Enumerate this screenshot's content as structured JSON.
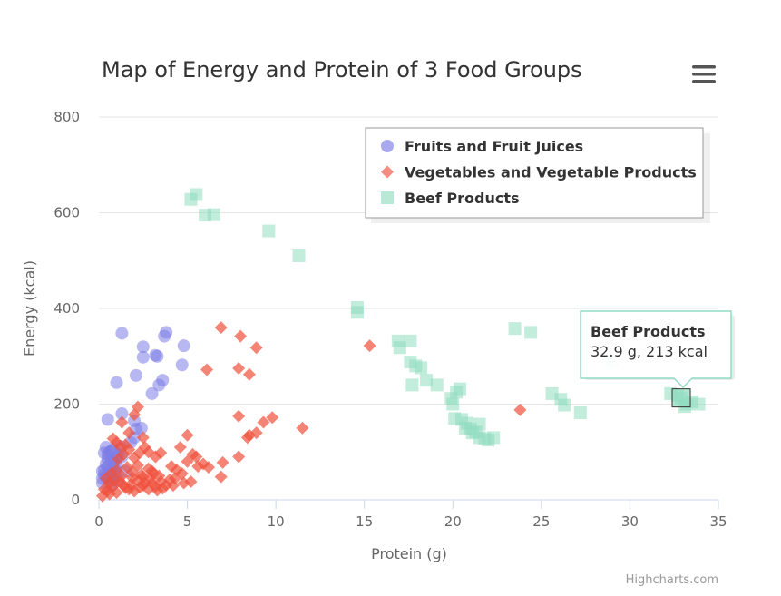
{
  "chart_data": {
    "type": "scatter",
    "title": "Map of Energy and Protein of 3 Food Groups",
    "xlabel": "Protein (g)",
    "ylabel": "Energy (kcal)",
    "xlim": [
      0,
      35
    ],
    "ylim": [
      0,
      800
    ],
    "x_ticks": [
      "0",
      "5",
      "10",
      "15",
      "20",
      "25",
      "30",
      "35"
    ],
    "y_ticks": [
      "0",
      "200",
      "400",
      "600",
      "800"
    ],
    "grid": "horizontal",
    "legend_position": "top-right",
    "series": [
      {
        "name": "Fruits and Fruit Juices",
        "color": "#7b7be6",
        "marker": "circle",
        "points": [
          [
            0.2,
            60
          ],
          [
            0.3,
            52
          ],
          [
            0.4,
            75
          ],
          [
            0.5,
            95
          ],
          [
            0.6,
            45
          ],
          [
            0.7,
            80
          ],
          [
            0.8,
            105
          ],
          [
            0.9,
            65
          ],
          [
            1.0,
            88
          ],
          [
            1.1,
            40
          ],
          [
            0.5,
            70
          ],
          [
            0.3,
            98
          ],
          [
            0.6,
            58
          ],
          [
            0.8,
            42
          ],
          [
            0.4,
            110
          ],
          [
            1.2,
            112
          ],
          [
            0.7,
            30
          ],
          [
            0.2,
            35
          ],
          [
            0.9,
            55
          ],
          [
            1.0,
            72
          ],
          [
            0.5,
            85
          ],
          [
            0.6,
            100
          ],
          [
            0.4,
            48
          ],
          [
            1.1,
            95
          ],
          [
            0.3,
            62
          ],
          [
            0.8,
            78
          ],
          [
            1.3,
            90
          ],
          [
            0.2,
            45
          ],
          [
            0.7,
            102
          ],
          [
            1.5,
            60
          ],
          [
            1.3,
            348
          ],
          [
            0.5,
            168
          ],
          [
            1.0,
            245
          ],
          [
            1.3,
            180
          ],
          [
            2.0,
            165
          ],
          [
            2.1,
            260
          ],
          [
            2.1,
            148
          ],
          [
            2.4,
            150
          ],
          [
            2.5,
            320
          ],
          [
            2.5,
            298
          ],
          [
            3.2,
            302
          ],
          [
            3.3,
            300
          ],
          [
            3.0,
            222
          ],
          [
            3.4,
            240
          ],
          [
            3.6,
            250
          ],
          [
            3.7,
            342
          ],
          [
            3.8,
            350
          ],
          [
            4.7,
            282
          ],
          [
            4.8,
            322
          ],
          [
            2.0,
            130
          ],
          [
            1.8,
            120
          ]
        ]
      },
      {
        "name": "Vegetables and Vegetable Products",
        "color": "#f0503c",
        "marker": "diamond",
        "points": [
          [
            0.2,
            8
          ],
          [
            0.5,
            20
          ],
          [
            0.8,
            28
          ],
          [
            1.0,
            15
          ],
          [
            1.2,
            38
          ],
          [
            1.5,
            25
          ],
          [
            1.8,
            32
          ],
          [
            2.0,
            18
          ],
          [
            2.2,
            40
          ],
          [
            2.5,
            30
          ],
          [
            2.8,
            22
          ],
          [
            3.0,
            35
          ],
          [
            3.2,
            28
          ],
          [
            3.5,
            38
          ],
          [
            3.8,
            30
          ],
          [
            4.0,
            42
          ],
          [
            0.4,
            45
          ],
          [
            0.7,
            55
          ],
          [
            1.0,
            62
          ],
          [
            1.3,
            50
          ],
          [
            1.6,
            68
          ],
          [
            1.9,
            58
          ],
          [
            2.2,
            72
          ],
          [
            2.5,
            48
          ],
          [
            2.8,
            65
          ],
          [
            3.1,
            55
          ],
          [
            0.6,
            35
          ],
          [
            0.9,
            40
          ],
          [
            1.4,
            30
          ],
          [
            1.7,
            22
          ],
          [
            2.3,
            26
          ],
          [
            2.6,
            36
          ],
          [
            2.9,
            44
          ],
          [
            3.3,
            20
          ],
          [
            3.6,
            24
          ],
          [
            4.2,
            30
          ],
          [
            1.1,
            85
          ],
          [
            1.4,
            95
          ],
          [
            1.7,
            105
          ],
          [
            2.0,
            88
          ],
          [
            2.3,
            98
          ],
          [
            2.6,
            110
          ],
          [
            1.0,
            120
          ],
          [
            1.5,
            115
          ],
          [
            2.8,
            100
          ],
          [
            3.2,
            90
          ],
          [
            3.5,
            98
          ],
          [
            4.1,
            70
          ],
          [
            4.4,
            62
          ],
          [
            4.7,
            55
          ],
          [
            5.0,
            80
          ],
          [
            5.3,
            95
          ],
          [
            5.6,
            70
          ],
          [
            5.9,
            75
          ],
          [
            6.2,
            68
          ],
          [
            4.6,
            110
          ],
          [
            5.0,
            135
          ],
          [
            5.5,
            90
          ],
          [
            4.8,
            35
          ],
          [
            5.2,
            38
          ],
          [
            4.3,
            45
          ],
          [
            6.9,
            48
          ],
          [
            7.0,
            78
          ],
          [
            7.9,
            90
          ],
          [
            8.4,
            130
          ],
          [
            8.5,
            135
          ],
          [
            8.9,
            140
          ],
          [
            9.3,
            162
          ],
          [
            9.8,
            172
          ],
          [
            7.9,
            175
          ],
          [
            11.5,
            150
          ],
          [
            6.9,
            360
          ],
          [
            8.0,
            342
          ],
          [
            8.9,
            318
          ],
          [
            7.9,
            275
          ],
          [
            8.5,
            262
          ],
          [
            6.1,
            272
          ],
          [
            15.3,
            322
          ],
          [
            23.8,
            188
          ],
          [
            1.3,
            162
          ],
          [
            2.0,
            178
          ],
          [
            2.2,
            194
          ],
          [
            1.7,
            140
          ],
          [
            2.5,
            130
          ],
          [
            0.8,
            128
          ],
          [
            1.2,
            112
          ],
          [
            0.3,
            22
          ],
          [
            0.6,
            12
          ],
          [
            1.9,
            46
          ],
          [
            2.4,
            52
          ],
          [
            3.0,
            60
          ],
          [
            3.4,
            50
          ]
        ]
      },
      {
        "name": "Beef Products",
        "color": "#90ddc0",
        "marker": "square",
        "points": [
          [
            5.2,
            628
          ],
          [
            5.5,
            638
          ],
          [
            6.0,
            595
          ],
          [
            6.5,
            596
          ],
          [
            9.6,
            562
          ],
          [
            11.3,
            510
          ],
          [
            14.6,
            402
          ],
          [
            14.6,
            392
          ],
          [
            16.9,
            332
          ],
          [
            17.0,
            318
          ],
          [
            17.6,
            332
          ],
          [
            17.6,
            288
          ],
          [
            17.9,
            280
          ],
          [
            18.2,
            276
          ],
          [
            18.5,
            250
          ],
          [
            17.7,
            240
          ],
          [
            19.1,
            240
          ],
          [
            19.9,
            212
          ],
          [
            20.0,
            200
          ],
          [
            20.2,
            225
          ],
          [
            20.4,
            232
          ],
          [
            20.1,
            170
          ],
          [
            20.5,
            168
          ],
          [
            20.8,
            160
          ],
          [
            21.0,
            148
          ],
          [
            21.3,
            142
          ],
          [
            21.5,
            158
          ],
          [
            21.5,
            130
          ],
          [
            21.8,
            128
          ],
          [
            22.0,
            125
          ],
          [
            22.3,
            130
          ],
          [
            20.7,
            150
          ],
          [
            21.1,
            140
          ],
          [
            23.5,
            358
          ],
          [
            24.4,
            350
          ],
          [
            25.6,
            222
          ],
          [
            26.1,
            210
          ],
          [
            26.3,
            198
          ],
          [
            27.2,
            182
          ],
          [
            29.0,
            290
          ],
          [
            32.3,
            222
          ],
          [
            32.9,
            213
          ],
          [
            33.2,
            200
          ],
          [
            33.5,
            205
          ],
          [
            33.9,
            200
          ],
          [
            33.1,
            195
          ],
          [
            32.7,
            218
          ]
        ]
      }
    ],
    "tooltip": {
      "series": "Beef Products",
      "title": "Beef Products",
      "text": "32.9 g, 213 kcal",
      "point": [
        32.9,
        213
      ]
    },
    "credits": "Highcharts.com"
  },
  "menu_icon": "hamburger-menu-icon"
}
